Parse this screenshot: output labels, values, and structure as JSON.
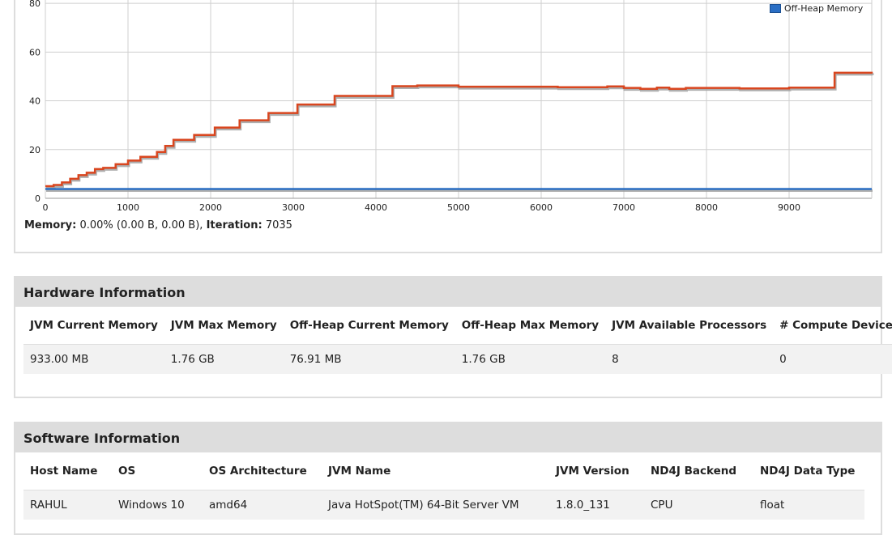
{
  "chart": {
    "status_memory_label": "Memory:",
    "status_memory_value": "0.00% (0.00 B, 0.00 B),",
    "status_iteration_label": "Iteration:",
    "status_iteration_value": "7035",
    "legend_label": "Off-Heap Memory"
  },
  "chart_data": {
    "type": "line",
    "xlim": [
      0,
      10000
    ],
    "ylim": [
      0,
      90
    ],
    "x_ticks": [
      0,
      1000,
      2000,
      3000,
      4000,
      5000,
      6000,
      7000,
      8000,
      9000
    ],
    "y_ticks": [
      0,
      20,
      40,
      60,
      80
    ],
    "grid": true,
    "legend_position": "top-right",
    "series": [
      {
        "color": "#d9461f",
        "step": true,
        "points": [
          [
            0,
            5
          ],
          [
            100,
            5.5
          ],
          [
            200,
            6.5
          ],
          [
            300,
            8
          ],
          [
            400,
            9.5
          ],
          [
            500,
            10.5
          ],
          [
            600,
            12
          ],
          [
            700,
            12.5
          ],
          [
            850,
            14
          ],
          [
            1000,
            15.5
          ],
          [
            1150,
            17
          ],
          [
            1350,
            19
          ],
          [
            1450,
            21.5
          ],
          [
            1550,
            24
          ],
          [
            1800,
            26
          ],
          [
            2050,
            29
          ],
          [
            2350,
            32
          ],
          [
            2700,
            35
          ],
          [
            3050,
            38.5
          ],
          [
            3500,
            42
          ],
          [
            4200,
            46
          ],
          [
            4500,
            46.3
          ],
          [
            5000,
            45.8
          ],
          [
            6200,
            45.6
          ],
          [
            6800,
            45.9
          ],
          [
            7000,
            45.3
          ],
          [
            7200,
            44.9
          ],
          [
            7400,
            45.4
          ],
          [
            7550,
            44.9
          ],
          [
            7750,
            45.3
          ],
          [
            8400,
            45.1
          ],
          [
            9000,
            45.4
          ],
          [
            9550,
            51.5
          ],
          [
            9700,
            51.5
          ],
          [
            10000,
            51.2
          ]
        ]
      },
      {
        "name": "Off-Heap Memory",
        "color": "#2a6ec4",
        "step": true,
        "points": [
          [
            0,
            3.8
          ],
          [
            10000,
            3.8
          ]
        ]
      }
    ]
  },
  "hardware": {
    "title": "Hardware Information",
    "headers": [
      "JVM Current Memory",
      "JVM Max Memory",
      "Off-Heap Current Memory",
      "Off-Heap Max Memory",
      "JVM Available Processors",
      "# Compute Devices"
    ],
    "values": [
      "933.00 MB",
      "1.76 GB",
      "76.91 MB",
      "1.76 GB",
      "8",
      "0"
    ]
  },
  "software": {
    "title": "Software Information",
    "headers": [
      "Host Name",
      "OS",
      "OS Architecture",
      "JVM Name",
      "JVM Version",
      "ND4J Backend",
      "ND4J Data Type"
    ],
    "values": [
      "RAHUL",
      "Windows 10",
      "amd64",
      "Java HotSpot(TM) 64-Bit Server VM",
      "1.8.0_131",
      "CPU",
      "float"
    ]
  }
}
